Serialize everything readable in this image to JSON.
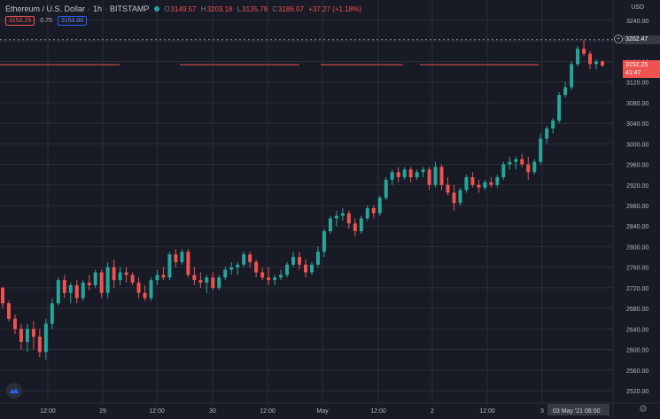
{
  "header": {
    "symbol": "Ethereum / U.S. Dollar",
    "interval": "1h",
    "exchange": "BITSTAMP",
    "open_label": "O",
    "open": "3149.57",
    "high_label": "H",
    "high": "3203.18",
    "low_label": "L",
    "low": "3135.79",
    "close_label": "C",
    "close": "3186.07",
    "change": "+37.27 (+1.18%)"
  },
  "quote": {
    "sell": "3152.25",
    "spread": "0.75",
    "buy": "3153.00"
  },
  "price_axis": {
    "currency": "USD",
    "crosshair_price": "3202.47",
    "last_price": "3152.25",
    "countdown": "41:47",
    "ticks": [
      "3240.00",
      "3200.00",
      "3160.00",
      "3120.00",
      "3080.00",
      "3040.00",
      "3000.00",
      "2960.00",
      "2920.00",
      "2880.00",
      "2840.00",
      "2800.00",
      "2760.00",
      "2720.00",
      "2680.00",
      "2640.00",
      "2600.00",
      "2560.00",
      "2520.00"
    ]
  },
  "time_axis": {
    "labels": [
      "12:00",
      "29",
      "12:00",
      "30",
      "12:00",
      "May",
      "12:00",
      "2",
      "12:00",
      "3"
    ],
    "crosshair_time": "03 May '21",
    "crosshair_hour": "06:00"
  },
  "colors": {
    "background": "#181a25",
    "grid": "#2a2e39",
    "up": "#26a69a",
    "down": "#ef5350",
    "crosshair_line": "#9598a1"
  },
  "icons": {
    "logo": "tradingview-logo-icon",
    "settings": "gear-icon",
    "crosshair": "plus-circle-icon"
  },
  "chart_data": {
    "type": "candlestick",
    "title": "Ethereum / U.S. Dollar",
    "ylabel": "USD",
    "ylim": [
      2500,
      3260
    ],
    "grid": true,
    "candles": [
      [
        2720,
        2722,
        2680,
        2690
      ],
      [
        2690,
        2695,
        2655,
        2660
      ],
      [
        2660,
        2668,
        2630,
        2640
      ],
      [
        2640,
        2650,
        2600,
        2615
      ],
      [
        2615,
        2650,
        2595,
        2640
      ],
      [
        2640,
        2655,
        2600,
        2625
      ],
      [
        2625,
        2640,
        2585,
        2595
      ],
      [
        2595,
        2660,
        2580,
        2650
      ],
      [
        2650,
        2700,
        2640,
        2690
      ],
      [
        2690,
        2740,
        2685,
        2735
      ],
      [
        2735,
        2745,
        2700,
        2710
      ],
      [
        2710,
        2730,
        2690,
        2725
      ],
      [
        2725,
        2735,
        2690,
        2700
      ],
      [
        2700,
        2735,
        2695,
        2730
      ],
      [
        2730,
        2745,
        2715,
        2725
      ],
      [
        2725,
        2755,
        2720,
        2750
      ],
      [
        2750,
        2755,
        2700,
        2710
      ],
      [
        2710,
        2770,
        2700,
        2760
      ],
      [
        2760,
        2775,
        2720,
        2735
      ],
      [
        2735,
        2760,
        2725,
        2750
      ],
      [
        2750,
        2760,
        2730,
        2745
      ],
      [
        2745,
        2750,
        2725,
        2730
      ],
      [
        2730,
        2740,
        2700,
        2710
      ],
      [
        2710,
        2725,
        2695,
        2700
      ],
      [
        2700,
        2740,
        2695,
        2735
      ],
      [
        2735,
        2755,
        2725,
        2745
      ],
      [
        2745,
        2760,
        2735,
        2740
      ],
      [
        2740,
        2790,
        2735,
        2785
      ],
      [
        2785,
        2795,
        2760,
        2770
      ],
      [
        2770,
        2795,
        2765,
        2790
      ],
      [
        2790,
        2795,
        2740,
        2745
      ],
      [
        2745,
        2760,
        2725,
        2735
      ],
      [
        2735,
        2750,
        2720,
        2730
      ],
      [
        2730,
        2745,
        2710,
        2740
      ],
      [
        2740,
        2750,
        2715,
        2720
      ],
      [
        2720,
        2745,
        2715,
        2740
      ],
      [
        2740,
        2760,
        2735,
        2755
      ],
      [
        2755,
        2770,
        2745,
        2760
      ],
      [
        2760,
        2770,
        2745,
        2765
      ],
      [
        2765,
        2790,
        2760,
        2785
      ],
      [
        2785,
        2790,
        2760,
        2770
      ],
      [
        2770,
        2775,
        2740,
        2750
      ],
      [
        2750,
        2760,
        2735,
        2740
      ],
      [
        2740,
        2760,
        2725,
        2735
      ],
      [
        2735,
        2745,
        2725,
        2740
      ],
      [
        2740,
        2755,
        2735,
        2745
      ],
      [
        2745,
        2770,
        2740,
        2765
      ],
      [
        2765,
        2790,
        2760,
        2780
      ],
      [
        2780,
        2790,
        2755,
        2765
      ],
      [
        2765,
        2775,
        2740,
        2750
      ],
      [
        2750,
        2770,
        2745,
        2765
      ],
      [
        2765,
        2800,
        2760,
        2790
      ],
      [
        2790,
        2835,
        2780,
        2830
      ],
      [
        2830,
        2860,
        2825,
        2855
      ],
      [
        2855,
        2870,
        2840,
        2860
      ],
      [
        2860,
        2875,
        2850,
        2865
      ],
      [
        2865,
        2870,
        2835,
        2845
      ],
      [
        2845,
        2855,
        2820,
        2830
      ],
      [
        2830,
        2860,
        2825,
        2855
      ],
      [
        2855,
        2880,
        2850,
        2875
      ],
      [
        2875,
        2880,
        2855,
        2865
      ],
      [
        2865,
        2900,
        2860,
        2895
      ],
      [
        2895,
        2935,
        2890,
        2930
      ],
      [
        2930,
        2950,
        2920,
        2945
      ],
      [
        2945,
        2955,
        2925,
        2935
      ],
      [
        2935,
        2955,
        2930,
        2950
      ],
      [
        2950,
        2955,
        2925,
        2935
      ],
      [
        2935,
        2950,
        2930,
        2945
      ],
      [
        2945,
        2955,
        2935,
        2950
      ],
      [
        2950,
        2955,
        2910,
        2920
      ],
      [
        2920,
        2965,
        2915,
        2955
      ],
      [
        2955,
        2960,
        2910,
        2920
      ],
      [
        2920,
        2935,
        2900,
        2905
      ],
      [
        2905,
        2920,
        2870,
        2885
      ],
      [
        2885,
        2915,
        2880,
        2910
      ],
      [
        2910,
        2940,
        2905,
        2935
      ],
      [
        2935,
        2945,
        2915,
        2920
      ],
      [
        2920,
        2930,
        2905,
        2915
      ],
      [
        2915,
        2930,
        2910,
        2925
      ],
      [
        2925,
        2935,
        2915,
        2920
      ],
      [
        2920,
        2940,
        2915,
        2935
      ],
      [
        2935,
        2965,
        2930,
        2960
      ],
      [
        2960,
        2975,
        2950,
        2965
      ],
      [
        2965,
        2975,
        2950,
        2970
      ],
      [
        2970,
        2980,
        2955,
        2960
      ],
      [
        2960,
        2975,
        2930,
        2945
      ],
      [
        2945,
        2970,
        2940,
        2965
      ],
      [
        2965,
        3020,
        2960,
        3010
      ],
      [
        3010,
        3035,
        3000,
        3030
      ],
      [
        3030,
        3050,
        3020,
        3045
      ],
      [
        3045,
        3100,
        3040,
        3095
      ],
      [
        3095,
        3120,
        3090,
        3110
      ],
      [
        3110,
        3160,
        3105,
        3155
      ],
      [
        3155,
        3190,
        3150,
        3185
      ],
      [
        3185,
        3203,
        3170,
        3175
      ],
      [
        3175,
        3180,
        3145,
        3155
      ],
      [
        3155,
        3165,
        3145,
        3160
      ],
      [
        3160,
        3162,
        3150,
        3152
      ]
    ],
    "time_labels": [
      "12:00",
      "29",
      "12:00",
      "30",
      "12:00",
      "May",
      "12:00",
      "2",
      "12:00",
      "3"
    ]
  }
}
